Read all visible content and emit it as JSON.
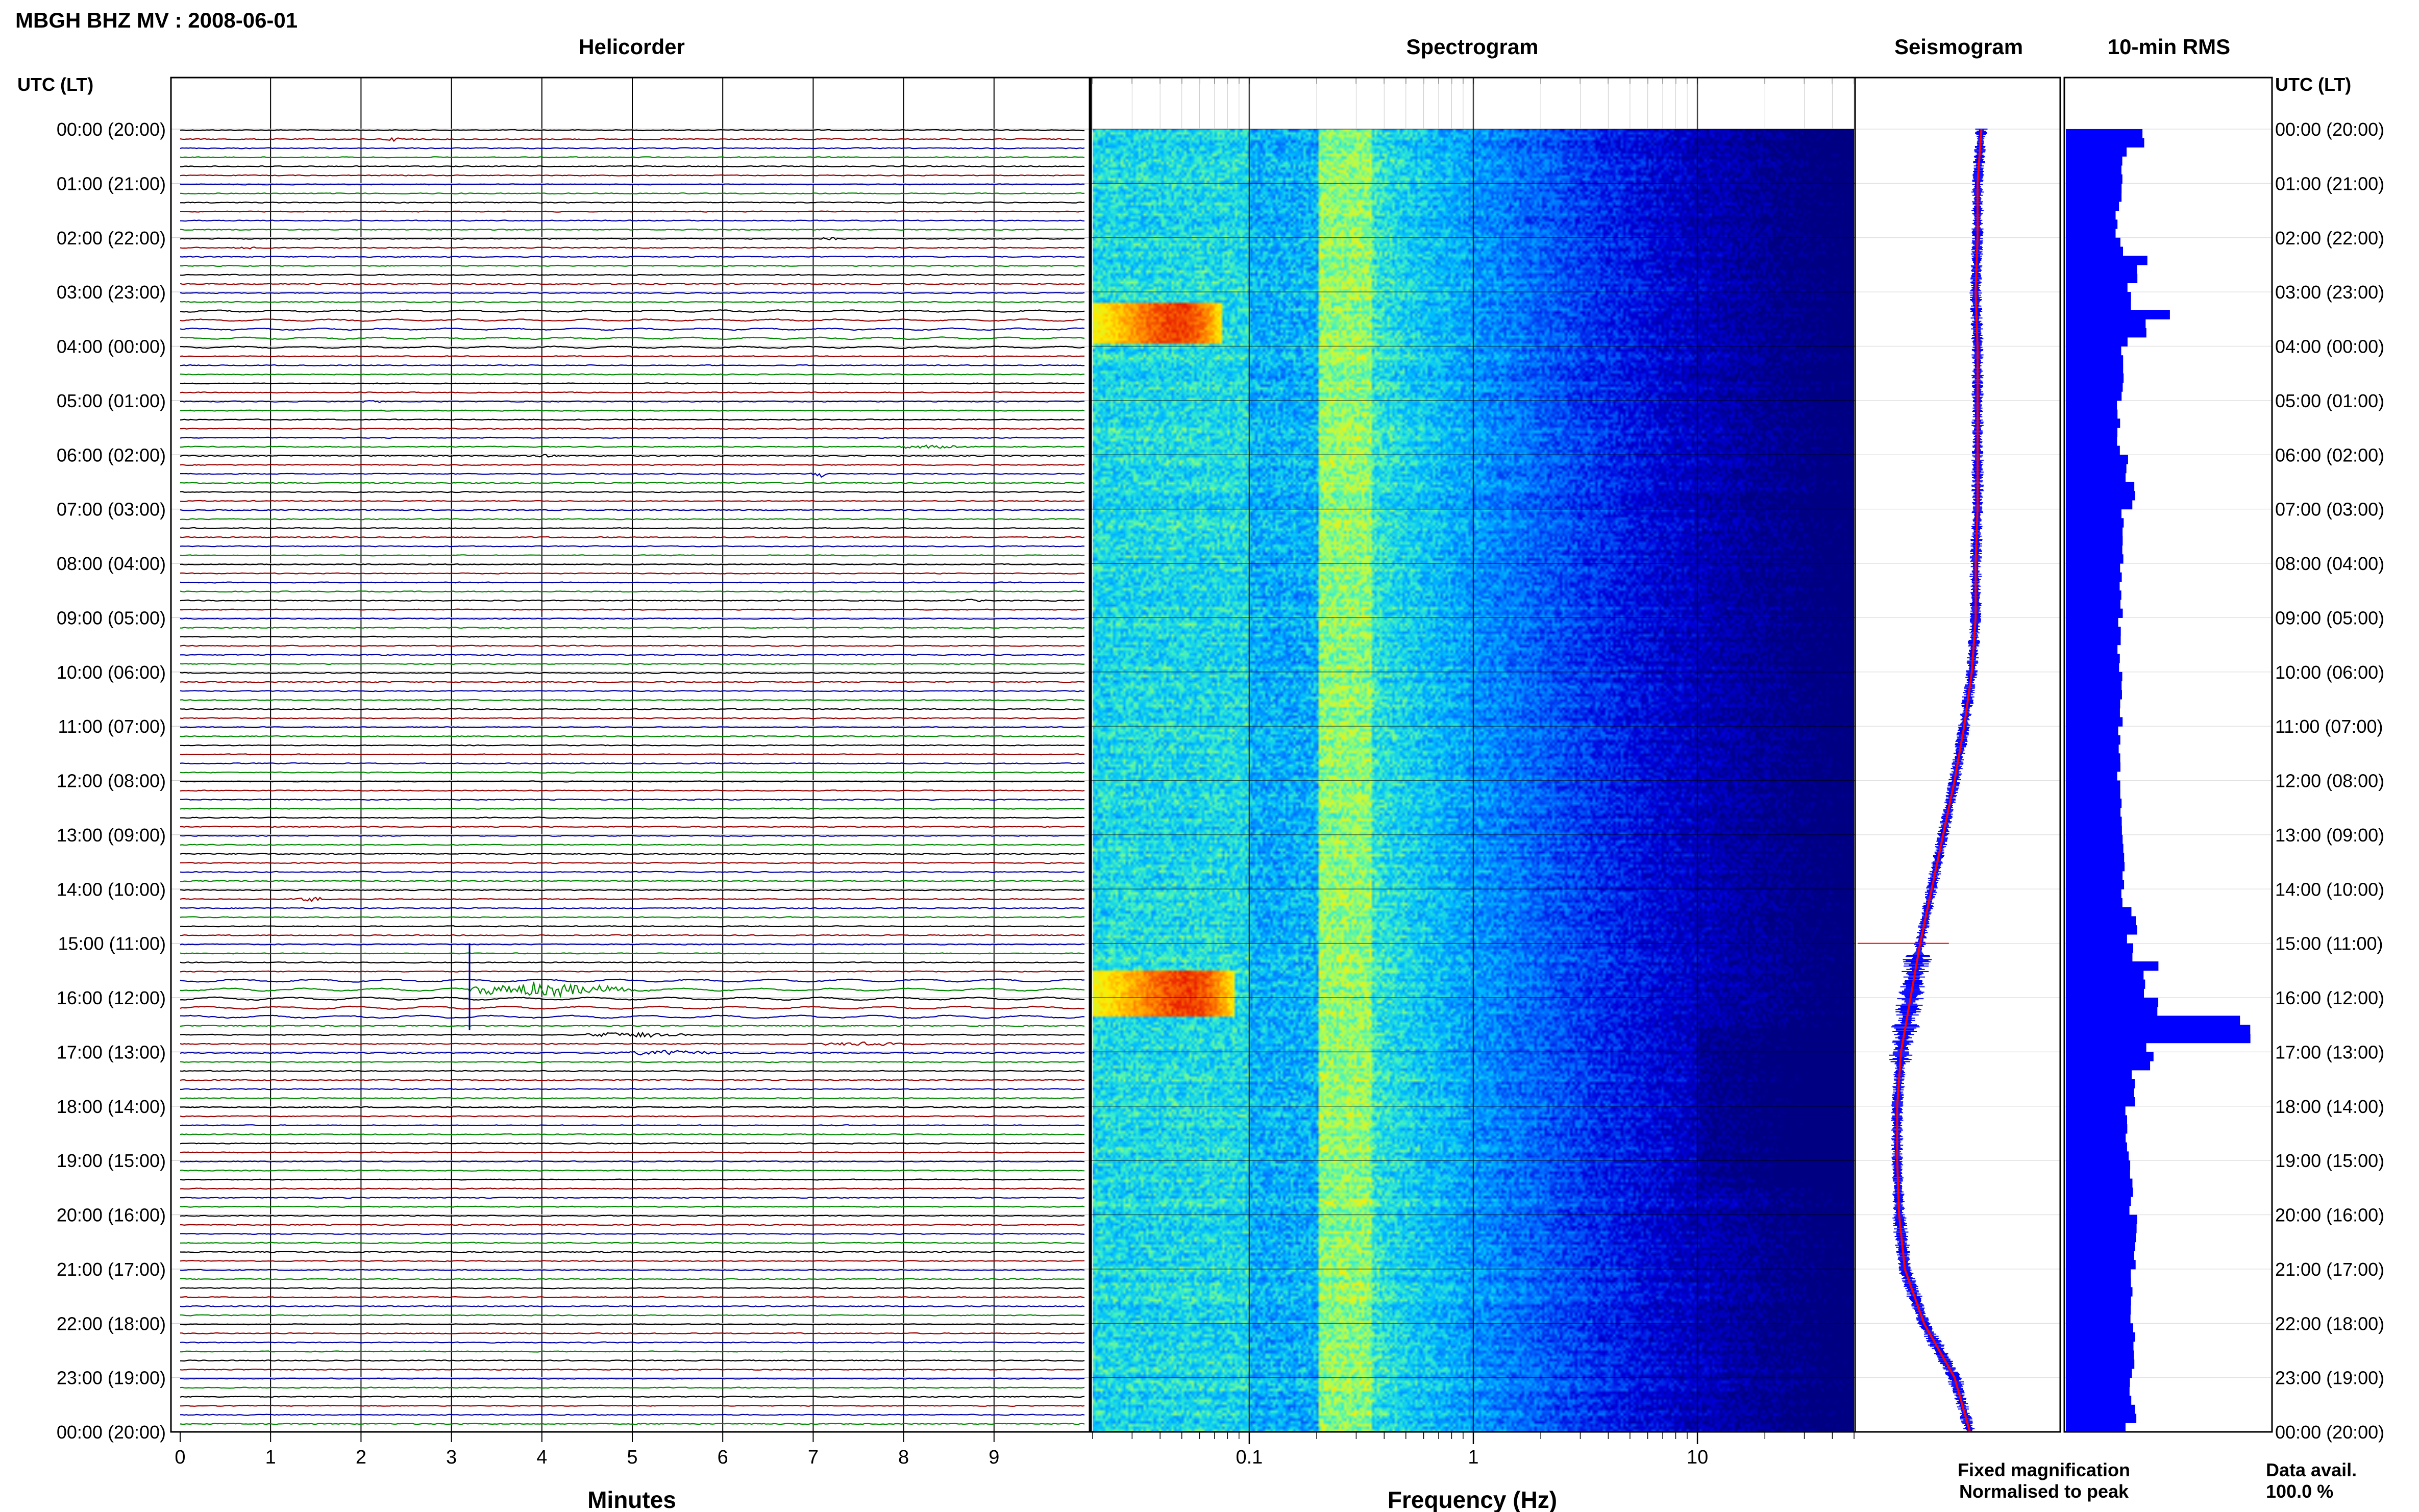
{
  "title": "MBGH BHZ MV : 2008-06-01",
  "panels": {
    "helicorder": "Helicorder",
    "spectrogram": "Spectrogram",
    "seismogram": "Seismogram",
    "rms": "10-min RMS"
  },
  "axis_header_left": "UTC (LT)",
  "axis_header_right": "UTC (LT)",
  "time_labels": [
    "00:00 (20:00)",
    "01:00 (21:00)",
    "02:00 (22:00)",
    "03:00 (23:00)",
    "04:00 (00:00)",
    "05:00 (01:00)",
    "06:00 (02:00)",
    "07:00 (03:00)",
    "08:00 (04:00)",
    "09:00 (05:00)",
    "10:00 (06:00)",
    "11:00 (07:00)",
    "12:00 (08:00)",
    "13:00 (09:00)",
    "14:00 (10:00)",
    "15:00 (11:00)",
    "16:00 (12:00)",
    "17:00 (13:00)",
    "18:00 (14:00)",
    "19:00 (15:00)",
    "20:00 (16:00)",
    "21:00 (17:00)",
    "22:00 (18:00)",
    "23:00 (19:00)",
    "00:00 (20:00)"
  ],
  "minute_ticks": [
    "0",
    "1",
    "2",
    "3",
    "4",
    "5",
    "6",
    "7",
    "8",
    "9"
  ],
  "minutes_label": "Minutes",
  "freq_ticks": [
    "0.1",
    "1",
    "10"
  ],
  "freq_label": "Frequency (Hz)",
  "legend": {
    "fixed": "Fixed magnification",
    "normalised": "Normalised to peak",
    "fixed_color": "#0000ff",
    "normalised_color": "#ff0000"
  },
  "data_avail": {
    "label": "Data avail.",
    "value": "100.0 %"
  },
  "trace_colors": [
    "#000000",
    "#990000",
    "#0000aa",
    "#008800"
  ],
  "chart_data": [
    {
      "type": "line",
      "name": "Helicorder",
      "xlabel": "Minutes",
      "xlim": [
        0,
        10
      ],
      "rows": 144,
      "row_minutes": 10,
      "events": [
        {
          "row": 1,
          "minute": 2.2,
          "amp": 3,
          "dur": 0.5
        },
        {
          "row": 13,
          "minute": 0.6,
          "amp": 3,
          "dur": 0.3
        },
        {
          "row": 12,
          "minute": 7.0,
          "amp": 2,
          "dur": 0.5
        },
        {
          "row": 30,
          "minute": 2.0,
          "amp": 2,
          "dur": 0.4
        },
        {
          "row": 35,
          "minute": 7.9,
          "amp": 3,
          "dur": 1.2
        },
        {
          "row": 36,
          "minute": 3.8,
          "amp": 3,
          "dur": 0.6
        },
        {
          "row": 38,
          "minute": 7.0,
          "amp": 7,
          "dur": 0.2
        },
        {
          "row": 52,
          "minute": 8.5,
          "amp": 2,
          "dur": 0.6
        },
        {
          "row": 85,
          "minute": 1.3,
          "amp": 5,
          "dur": 0.4
        },
        {
          "row": 100,
          "minute": 4.5,
          "amp": 5,
          "dur": 1.4
        },
        {
          "row": 102,
          "minute": 4.9,
          "amp": 5,
          "dur": 1.4
        },
        {
          "row": 101,
          "minute": 7.0,
          "amp": 3,
          "dur": 1.5
        },
        {
          "row": 95,
          "minute": 3.2,
          "amp": 14,
          "dur": 2.2
        }
      ]
    },
    {
      "type": "heatmap",
      "name": "Spectrogram",
      "xlabel": "Frequency (Hz)",
      "xscale": "log",
      "xlim": [
        0.02,
        50
      ],
      "hot_spots": [
        {
          "hour_start": 3.2,
          "hour_end": 3.9,
          "f_start": 0.02,
          "f_end": 0.075
        },
        {
          "hour_start": 15.5,
          "hour_end": 16.3,
          "f_start": 0.02,
          "f_end": 0.085
        }
      ]
    },
    {
      "type": "line",
      "name": "Seismogram",
      "series": [
        {
          "name": "Fixed magnification",
          "color": "#0000ff"
        },
        {
          "name": "Normalised to peak",
          "color": "#ff0000"
        }
      ],
      "hours": [
        0,
        1,
        2,
        3,
        4,
        5,
        6,
        7,
        8,
        9,
        10,
        11,
        12,
        13,
        14,
        15,
        16,
        17,
        18,
        19,
        20,
        21,
        22,
        23,
        24
      ],
      "baseline": [
        0.62,
        0.6,
        0.6,
        0.59,
        0.6,
        0.6,
        0.6,
        0.6,
        0.59,
        0.59,
        0.57,
        0.53,
        0.48,
        0.42,
        0.36,
        0.3,
        0.25,
        0.2,
        0.18,
        0.18,
        0.19,
        0.22,
        0.32,
        0.48,
        0.56
      ]
    },
    {
      "type": "bar",
      "name": "10-min RMS",
      "hours": [
        0,
        0.17,
        0.33,
        0.5,
        0.67,
        0.83,
        1,
        1.5,
        2,
        2.17,
        2.33,
        2.5,
        2.67,
        2.83,
        3,
        3.17,
        3.33,
        3.5,
        3.67,
        3.83,
        4,
        5,
        6,
        6.5,
        7,
        8,
        9,
        10,
        11,
        12,
        13,
        13.5,
        14,
        14.17,
        14.33,
        14.5,
        14.67,
        14.83,
        15,
        15.17,
        15.33,
        15.5,
        15.67,
        15.83,
        16,
        16.17,
        16.33,
        16.5,
        16.67,
        16.83,
        17,
        17.17,
        18,
        19,
        20,
        21,
        22,
        23,
        23.5,
        23.83
      ],
      "values": [
        0.38,
        0.32,
        0.3,
        0.28,
        0.27,
        0.27,
        0.27,
        0.25,
        0.27,
        0.3,
        0.4,
        0.35,
        0.3,
        0.3,
        0.32,
        0.45,
        0.5,
        0.4,
        0.33,
        0.3,
        0.28,
        0.26,
        0.3,
        0.33,
        0.28,
        0.27,
        0.26,
        0.27,
        0.26,
        0.27,
        0.28,
        0.28,
        0.28,
        0.28,
        0.33,
        0.35,
        0.35,
        0.3,
        0.32,
        0.4,
        0.45,
        0.38,
        0.33,
        0.38,
        0.45,
        0.6,
        0.85,
        0.9,
        0.5,
        0.4,
        0.42,
        0.33,
        0.3,
        0.32,
        0.34,
        0.32,
        0.33,
        0.32,
        0.34,
        0.3
      ]
    }
  ]
}
